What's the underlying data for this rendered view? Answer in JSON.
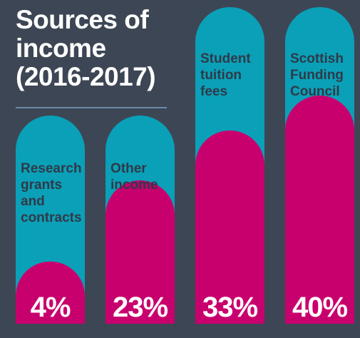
{
  "title": [
    "Sources of",
    "income",
    "(2016-2017)"
  ],
  "colors": {
    "background": "#3d4654",
    "capsule": "#0aa0b8",
    "fill": "#c8006e",
    "label": "#2f3a48",
    "value_text": "#ffffff"
  },
  "chart_data": {
    "type": "bar",
    "title": "Sources of income (2016-2017)",
    "categories": [
      [
        "Research",
        "grants",
        "and",
        "contracts"
      ],
      [
        "Other",
        "income"
      ],
      [
        "Student",
        "tuition",
        "fees"
      ],
      [
        "Scottish",
        "Funding",
        "Council"
      ]
    ],
    "values": [
      4,
      23,
      33,
      40
    ],
    "value_labels": [
      "4%",
      "23%",
      "33%",
      "40%"
    ],
    "unit": "%",
    "ylim": [
      0,
      55
    ]
  }
}
